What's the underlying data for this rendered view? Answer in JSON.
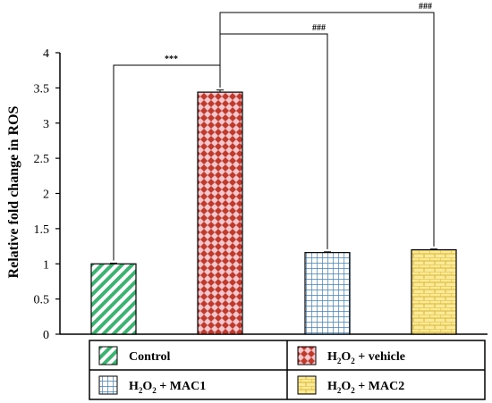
{
  "chart_data": {
    "type": "bar",
    "categories": [
      "Control",
      "H2O2 + vehicle",
      "H2O2 + MAC1",
      "H2O2 + MAC2"
    ],
    "values": [
      1.0,
      3.44,
      1.16,
      1.2
    ],
    "errors": [
      0.01,
      0.03,
      0.01,
      0.01
    ],
    "ylabel": "Relative fold change in ROS",
    "ylim": [
      0,
      4
    ],
    "yticks": [
      "0",
      "0.5",
      "1",
      "1.5",
      "2",
      "2.5",
      "3",
      "3.5",
      "4"
    ],
    "grid": false,
    "legend_position": "bottom",
    "significance": [
      {
        "from": "Control",
        "to": "H2O2 + vehicle",
        "label": "***"
      },
      {
        "from": "H2O2 + vehicle",
        "to": "H2O2 + MAC1",
        "label": "###"
      },
      {
        "from": "H2O2 + vehicle",
        "to": "H2O2 + MAC2",
        "label": "###"
      }
    ]
  },
  "legend": [
    {
      "pre": "Control",
      "sub": "",
      "post": "",
      "pattern": "diagonal-stripes",
      "color": "#3cb371"
    },
    {
      "pre": "H",
      "sub": "2",
      "mid": "O",
      "sub2": "2",
      "post": " + vehicle",
      "pattern": "diamond-checker",
      "color": "#c0392b"
    },
    {
      "pre": "H",
      "sub": "2",
      "mid": "O",
      "sub2": "2",
      "post": " + MAC1",
      "pattern": "grid",
      "color": "#3b82c4"
    },
    {
      "pre": "H",
      "sub": "2",
      "mid": "O",
      "sub2": "2",
      "post": " + MAC2",
      "pattern": "brick",
      "color": "#e0c040"
    }
  ],
  "colors": {
    "control": "#3cb371",
    "vehicle": "#c0392b",
    "mac1": "#3b82c4",
    "mac2": "#e0c040"
  }
}
